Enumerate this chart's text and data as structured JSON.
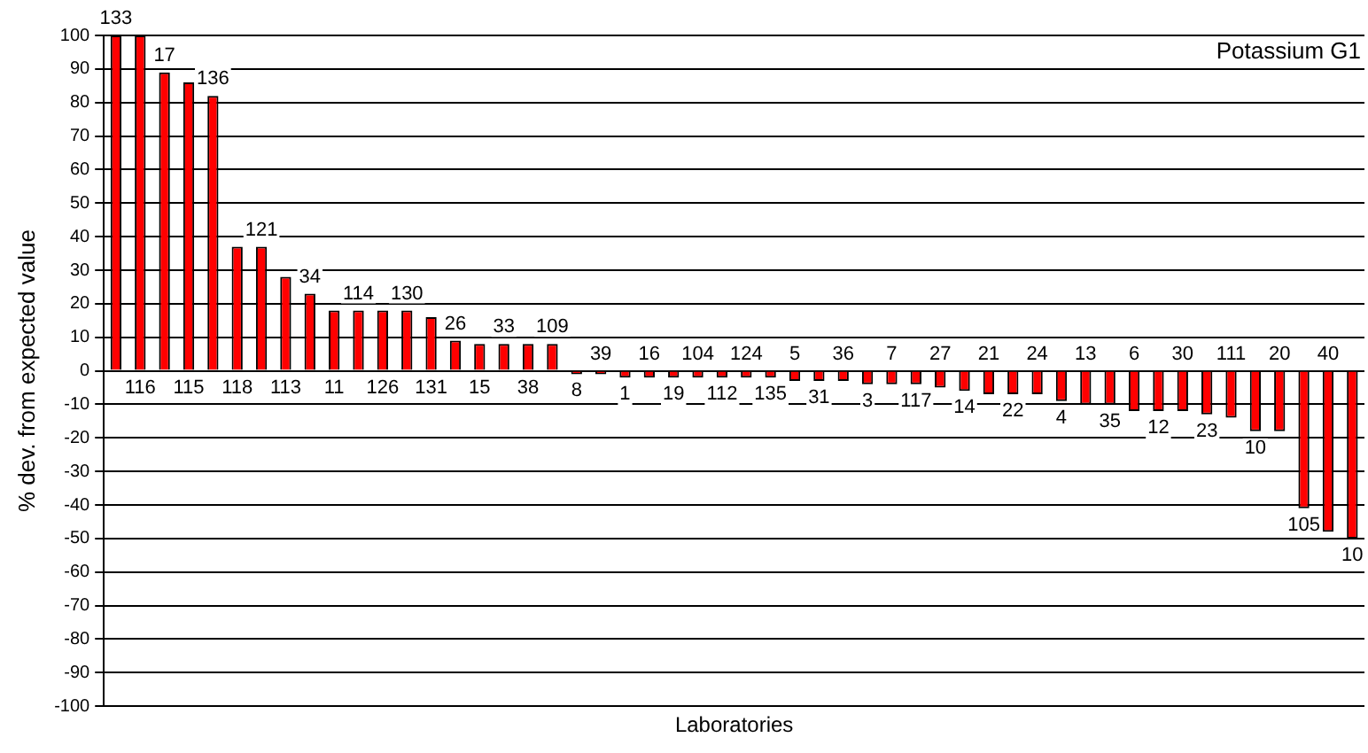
{
  "chart_data": {
    "type": "bar",
    "title": "Potassium G1",
    "xlabel": "Laboratories",
    "ylabel": "% dev. from expected value",
    "categories": [
      "133",
      "116",
      "17",
      "115",
      "136",
      "118",
      "121",
      "113",
      "34",
      "11",
      "114",
      "126",
      "130",
      "131",
      "26",
      "15",
      "33",
      "38",
      "109",
      "8",
      "39",
      "1",
      "16",
      "19",
      "104",
      "112",
      "124",
      "135",
      "5",
      "31",
      "36",
      "3",
      "7",
      "117",
      "27",
      "14",
      "21",
      "22",
      "24",
      "4",
      "13",
      "35",
      "6",
      "12",
      "30",
      "23",
      "111",
      "10",
      "20",
      "105",
      "40",
      "10"
    ],
    "values": [
      100,
      100,
      89,
      86,
      82,
      37,
      37,
      28,
      23,
      18,
      18,
      18,
      18,
      16,
      9,
      8,
      8,
      8,
      8,
      -1,
      -1,
      -2,
      -2,
      -2,
      -2,
      -2,
      -2,
      -2,
      -3,
      -3,
      -3,
      -4,
      -4,
      -4,
      -5,
      -6,
      -7,
      -7,
      -7,
      -9,
      -10,
      -10,
      -12,
      -12,
      -12,
      -13,
      -14,
      -18,
      -18,
      -41,
      -48,
      -50
    ],
    "color": "#ff0000",
    "ylim": [
      -100,
      100
    ],
    "yticks": [
      -100,
      -90,
      -80,
      -70,
      -60,
      -50,
      -40,
      -30,
      -20,
      -10,
      0,
      10,
      20,
      30,
      40,
      50,
      60,
      70,
      80,
      90,
      100
    ],
    "grid": "y",
    "tick_labels": "y",
    "legend": false
  }
}
